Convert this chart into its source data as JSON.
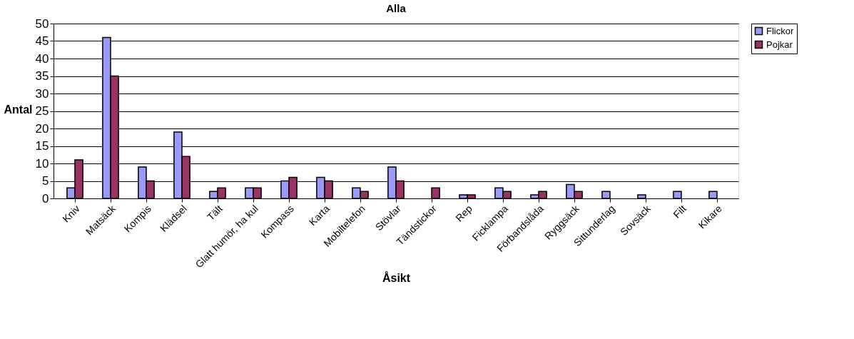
{
  "chart_data": {
    "type": "bar",
    "title": "Alla",
    "xlabel": "Åsikt",
    "ylabel": "Antal",
    "categories": [
      "Kniv",
      "Matsäck",
      "Kompis",
      "Klädsel",
      "Tält",
      "Glatt humör, ha kul",
      "Kompass",
      "Karta",
      "Mobiltelefon",
      "Stövlar",
      "Tändstickor",
      "Rep",
      "Ficklampa",
      "Förbandslåda",
      "Ryggsäck",
      "Sittunderlag",
      "Sovsäck",
      "Filt",
      "Kikare"
    ],
    "series": [
      {
        "name": "Flickor",
        "color": "#9999ff",
        "values": [
          3,
          46,
          9,
          19,
          2,
          3,
          5,
          6,
          3,
          9,
          0,
          1,
          3,
          1,
          4,
          2,
          1,
          2,
          2
        ]
      },
      {
        "name": "Pojkar",
        "color": "#993366",
        "values": [
          11,
          35,
          5,
          12,
          3,
          3,
          6,
          5,
          2,
          5,
          3,
          1,
          2,
          2,
          2,
          0,
          0,
          0,
          0
        ]
      }
    ],
    "ylim": [
      0,
      50
    ],
    "yticks": [
      0,
      5,
      10,
      15,
      20,
      25,
      30,
      35,
      40,
      45,
      50
    ],
    "grid": "y",
    "legend": "right"
  }
}
